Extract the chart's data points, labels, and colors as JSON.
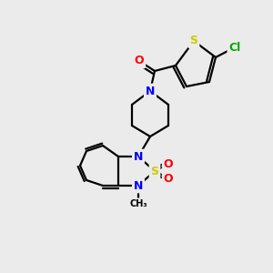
{
  "background_color": "#ebebeb",
  "bond_color": "#000000",
  "atom_colors": {
    "N": "#0000ff",
    "O": "#ff0000",
    "S": "#cccc00",
    "Cl": "#00aa00",
    "C": "#000000"
  },
  "figsize": [
    3.0,
    3.0
  ],
  "dpi": 100
}
